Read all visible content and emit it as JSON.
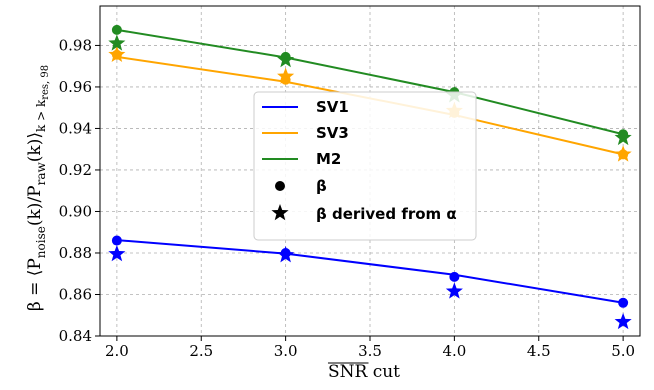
{
  "chart_data": {
    "type": "line",
    "xlabel_over": "SNR",
    "xlabel_rest": " cut",
    "ylabel": "β = ⟨P_noise(k)/P_raw(k)⟩_{k > k_res,98}",
    "xlim": [
      1.9,
      5.1
    ],
    "ylim": [
      0.84,
      0.999
    ],
    "xticks": [
      2.0,
      2.5,
      3.0,
      3.5,
      4.0,
      4.5,
      5.0
    ],
    "xtick_labels": [
      "2.0",
      "2.5",
      "3.0",
      "3.5",
      "4.0",
      "4.5",
      "5.0"
    ],
    "yticks": [
      0.84,
      0.86,
      0.88,
      0.9,
      0.92,
      0.94,
      0.96,
      0.98
    ],
    "ytick_labels": [
      "0.84",
      "0.86",
      "0.88",
      "0.90",
      "0.92",
      "0.94",
      "0.96",
      "0.98"
    ],
    "grid": true,
    "legend_position": "center",
    "series": [
      {
        "name": "SV1",
        "color": "#0000ff",
        "fit_x": [
          2.0,
          3.0,
          4.0,
          5.0
        ],
        "fit_y": [
          0.8862,
          0.8797,
          0.8695,
          0.856
        ],
        "beta_x": [
          2.0,
          3.0,
          4.0,
          5.0
        ],
        "beta_y": [
          0.886,
          0.88,
          0.8685,
          0.856
        ],
        "alpha_x": [
          2.0,
          3.0,
          4.0,
          5.0
        ],
        "alpha_y": [
          0.8795,
          0.879,
          0.8615,
          0.8468
        ]
      },
      {
        "name": "SV3",
        "color": "#ffa500",
        "fit_x": [
          2.0,
          3.0,
          4.0,
          5.0
        ],
        "fit_y": [
          0.9745,
          0.9625,
          0.9465,
          0.9275
        ],
        "beta_x": [
          2.0,
          3.0,
          4.0,
          5.0
        ],
        "beta_y": [
          0.9755,
          0.9635,
          0.9475,
          0.9275
        ],
        "alpha_x": [
          2.0,
          3.0,
          4.0,
          5.0
        ],
        "alpha_y": [
          0.9755,
          0.965,
          0.9485,
          0.9275
        ]
      },
      {
        "name": "M2",
        "color": "#228b22",
        "fit_x": [
          2.0,
          3.0,
          4.0,
          5.0
        ],
        "fit_y": [
          0.9875,
          0.9742,
          0.9575,
          0.9372
        ],
        "beta_x": [
          2.0,
          3.0,
          4.0,
          5.0
        ],
        "beta_y": [
          0.9875,
          0.9745,
          0.9575,
          0.9372
        ],
        "alpha_x": [
          2.0,
          3.0,
          4.0,
          5.0
        ],
        "alpha_y": [
          0.981,
          0.973,
          0.956,
          0.9355
        ]
      }
    ],
    "legend": {
      "marker_circle_label": "β",
      "marker_star_label": "β derived from α",
      "marker_color": "#000000"
    }
  }
}
